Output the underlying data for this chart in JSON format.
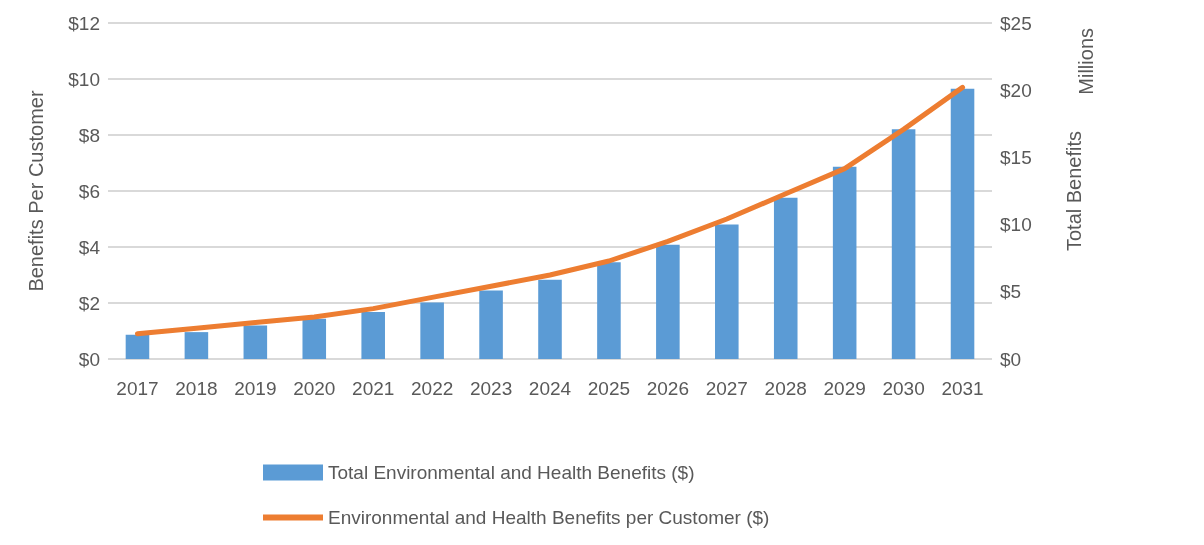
{
  "chart_data": {
    "type": "bar",
    "ylabel": "Benefits Per Customer",
    "y2label": "Total Benefits",
    "annotations": [
      "Millions"
    ],
    "categories": [
      "2017",
      "2018",
      "2019",
      "2020",
      "2021",
      "2022",
      "2023",
      "2024",
      "2025",
      "2026",
      "2027",
      "2028",
      "2029",
      "2030",
      "2031"
    ],
    "series": [
      {
        "name": "Total Environmental and Health Benefits ($)",
        "axis": "y2",
        "color": "#5b9bd5",
        "values": [
          1.8,
          2.0,
          2.5,
          3.0,
          3.5,
          4.2,
          5.1,
          5.9,
          7.2,
          8.5,
          10.0,
          12.0,
          14.3,
          17.1,
          20.1
        ]
      },
      {
        "name": "Environmental and Health Benefits per Customer ($)",
        "type": "line",
        "color": "#ed7d31",
        "values": [
          0.9,
          1.1,
          1.3,
          1.5,
          1.8,
          2.2,
          2.6,
          3.0,
          3.5,
          4.2,
          5.0,
          5.9,
          6.8,
          8.2,
          9.7
        ]
      }
    ],
    "ylim": [
      0,
      12
    ],
    "yticks": [
      {
        "value": 0,
        "label": "$0"
      },
      {
        "value": 2,
        "label": "$2"
      },
      {
        "value": 4,
        "label": "$4"
      },
      {
        "value": 6,
        "label": "$6"
      },
      {
        "value": 8,
        "label": "$8"
      },
      {
        "value": 10,
        "label": "$10"
      },
      {
        "value": 12,
        "label": "$12"
      }
    ],
    "y2lim": [
      0,
      25
    ],
    "y2ticks": [
      {
        "value": 0,
        "label": "$0"
      },
      {
        "value": 5,
        "label": "$5"
      },
      {
        "value": 10,
        "label": "$10"
      },
      {
        "value": 15,
        "label": "$15"
      },
      {
        "value": 20,
        "label": "$20"
      },
      {
        "value": 25,
        "label": "$25"
      }
    ],
    "grid": "y",
    "legend": "bottom",
    "marker": "none"
  }
}
